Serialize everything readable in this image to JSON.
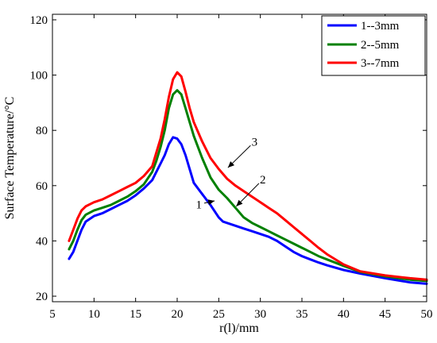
{
  "chart_data": {
    "type": "line",
    "xlabel": "r(l)/mm",
    "ylabel": "Surface Temperature/°C",
    "xlim": [
      5,
      50
    ],
    "ylim": [
      18,
      122
    ],
    "xticks": [
      5,
      10,
      15,
      20,
      25,
      30,
      35,
      40,
      45,
      50
    ],
    "yticks": [
      20,
      40,
      60,
      80,
      100,
      120
    ],
    "grid": false,
    "legend_position": "top-right",
    "series": [
      {
        "name": "1--3mm",
        "color": "#0000ff",
        "x": [
          7,
          7.5,
          8,
          8.5,
          9,
          10,
          11,
          12,
          13,
          14,
          15,
          16,
          17,
          17.5,
          18,
          18.5,
          19,
          19.5,
          20,
          20.5,
          21,
          21.5,
          22,
          23,
          24,
          25,
          25.5,
          26,
          27,
          28,
          29,
          30,
          31,
          32,
          33,
          34,
          35,
          36,
          37,
          38,
          40,
          42,
          45,
          48,
          50
        ],
        "y": [
          33.5,
          36,
          40,
          44,
          47,
          49,
          50,
          51.5,
          53,
          54.5,
          56.5,
          59,
          62,
          65,
          68,
          71,
          75,
          77.5,
          77,
          75,
          71,
          66,
          61,
          57,
          53,
          48.5,
          47,
          46.5,
          45.5,
          44.5,
          43.5,
          42.5,
          41.5,
          40,
          38,
          36,
          34.5,
          33.3,
          32.2,
          31.2,
          29.5,
          28.2,
          26.5,
          25,
          24.5
        ]
      },
      {
        "name": "2--5mm",
        "color": "#008000",
        "x": [
          7,
          7.5,
          8,
          8.5,
          9,
          10,
          11,
          12,
          13,
          14,
          15,
          16,
          17,
          17.5,
          18,
          18.5,
          19,
          19.5,
          20,
          20.5,
          21,
          21.5,
          22,
          23,
          24,
          25,
          26,
          27,
          28,
          29,
          30,
          31,
          32,
          33,
          34,
          35,
          36,
          37,
          38,
          40,
          42,
          45,
          48,
          50
        ],
        "y": [
          37,
          40,
          44,
          47.5,
          49.5,
          51,
          52,
          53,
          54.5,
          56,
          58,
          60.5,
          65,
          69,
          74,
          80,
          88,
          93,
          94.5,
          93,
          88,
          83,
          78,
          70,
          63,
          58.5,
          55.5,
          52,
          48.5,
          46.5,
          45,
          43.5,
          42,
          40.5,
          39,
          37.5,
          36,
          34.5,
          33.3,
          31,
          28.8,
          27.2,
          26,
          25.5
        ]
      },
      {
        "name": "3--7mm",
        "color": "#ff0000",
        "x": [
          7,
          7.5,
          8,
          8.5,
          9,
          10,
          11,
          12,
          13,
          14,
          15,
          16,
          17,
          17.5,
          18,
          18.5,
          19,
          19.5,
          20,
          20.5,
          21,
          21.5,
          22,
          23,
          24,
          25,
          26,
          27,
          28,
          29,
          30,
          31,
          32,
          33,
          34,
          35,
          36,
          37,
          38,
          40,
          42,
          45,
          48,
          50
        ],
        "y": [
          40,
          44,
          48,
          51,
          52.5,
          54,
          55,
          56.5,
          58,
          59.5,
          61,
          63.5,
          67,
          72,
          77,
          84,
          92,
          98.5,
          101,
          99.5,
          94,
          88,
          83,
          76,
          70,
          66,
          62.5,
          60,
          58,
          56,
          54,
          52,
          50,
          47.5,
          45,
          42.5,
          40,
          37.5,
          35.2,
          31.5,
          29,
          27.5,
          26.5,
          26
        ]
      }
    ],
    "annotations": [
      {
        "text": "1",
        "x": 22.6,
        "y": 51.8,
        "arrow_to": [
          24.5,
          54.5
        ]
      },
      {
        "text": "2",
        "x": 30.3,
        "y": 60.8,
        "arrow_to": [
          27.1,
          52.5
        ]
      },
      {
        "text": "3",
        "x": 29.3,
        "y": 74.5,
        "arrow_to": [
          26.1,
          66.5
        ]
      }
    ]
  }
}
